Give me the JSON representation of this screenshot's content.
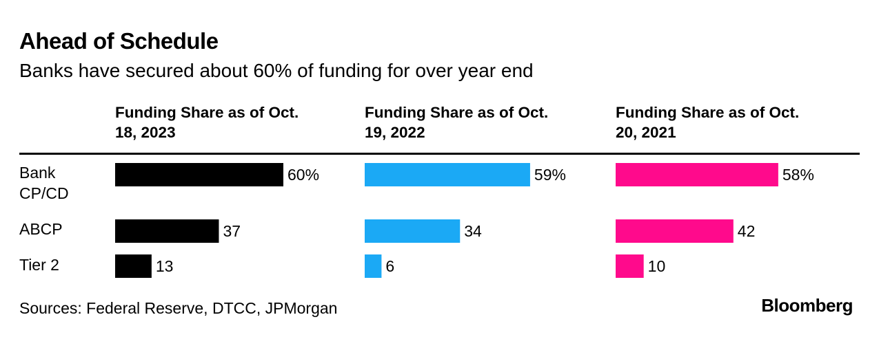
{
  "chart_data": {
    "type": "bar",
    "title": "Ahead of Schedule",
    "subtitle": "Banks have secured about 60% of funding for over year end",
    "categories": [
      "Bank CP/CD",
      "ABCP",
      "Tier 2"
    ],
    "category_lines": [
      [
        "Bank",
        "CP/CD"
      ],
      [
        "ABCP"
      ],
      [
        "Tier 2"
      ]
    ],
    "series": [
      {
        "name_lines": [
          "Funding Share as of Oct.",
          "18, 2023"
        ],
        "color": "#000000",
        "values": [
          60,
          37,
          13
        ],
        "labels": [
          "60%",
          "37",
          "13"
        ]
      },
      {
        "name_lines": [
          "Funding Share as of Oct.",
          "19, 2022"
        ],
        "color": "#1BA9F5",
        "values": [
          59,
          34,
          6
        ],
        "labels": [
          "59%",
          "34",
          "6"
        ]
      },
      {
        "name_lines": [
          "Funding Share as of Oct.",
          "20, 2021"
        ],
        "color": "#FF0A8C",
        "values": [
          58,
          42,
          10
        ],
        "labels": [
          "58%",
          "42",
          "10"
        ]
      }
    ],
    "xlim": [
      0,
      60
    ]
  },
  "footer": {
    "source": "Sources: Federal Reserve, DTCC, JPMorgan",
    "brand": "Bloomberg"
  }
}
